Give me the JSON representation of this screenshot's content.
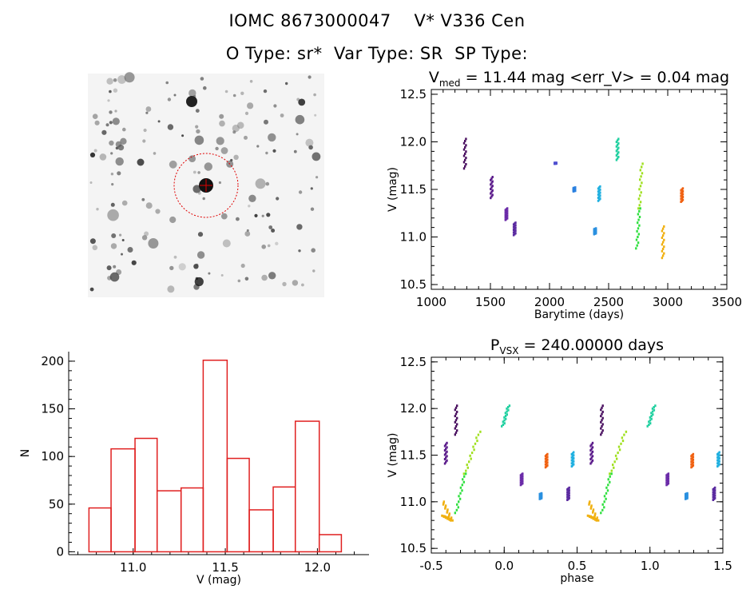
{
  "header": {
    "line1": "IOMC 8673000047    V* V336 Cen",
    "line2": "O Type: sr*  Var Type: SR  SP Type:"
  },
  "colors": {
    "hist": "#e02020",
    "circle": "#e00000",
    "axis": "#000000",
    "blue_text": "#2030c0"
  },
  "image_panel": {
    "type": "star-field-image",
    "circle_color": "#e00000"
  },
  "chart_data": [
    {
      "id": "lightcurve",
      "type": "scatter",
      "title_main": "V",
      "title_sub": "med",
      "title_rest": " = 11.44 mag <err_V> = 0.04 mag",
      "xlabel": "Barytime (days)",
      "ylabel": "V (mag)",
      "xlim": [
        1000,
        3500
      ],
      "ylim": [
        12.55,
        10.45
      ],
      "xticks": [
        "1000",
        "1500",
        "2000",
        "2500",
        "3000",
        "3500"
      ],
      "yticks": [
        "10.5",
        "11.0",
        "11.5",
        "12.0",
        "12.5"
      ],
      "series": [
        {
          "color": "#4a1060",
          "points": [
            [
              1285,
              11.72
            ],
            [
              1285,
              12.03
            ]
          ]
        },
        {
          "color": "#5a1a8a",
          "points": [
            [
              1510,
              11.41
            ],
            [
              1510,
              11.63
            ]
          ]
        },
        {
          "color": "#6a2aa8",
          "points": [
            [
              1635,
              11.18
            ],
            [
              1635,
              11.3
            ]
          ]
        },
        {
          "color": "#5a2aa0",
          "points": [
            [
              1705,
              11.02
            ],
            [
              1705,
              11.15
            ]
          ]
        },
        {
          "color": "#5050d0",
          "points": [
            [
              2050,
              11.77
            ],
            [
              2050,
              11.78
            ]
          ]
        },
        {
          "color": "#2a80e0",
          "points": [
            [
              2210,
              11.48
            ],
            [
              2210,
              11.52
            ]
          ]
        },
        {
          "color": "#2a90e0",
          "points": [
            [
              2385,
              11.03
            ],
            [
              2385,
              11.09
            ]
          ]
        },
        {
          "color": "#20b0e0",
          "points": [
            [
              2420,
              11.38
            ],
            [
              2420,
              11.53
            ]
          ]
        },
        {
          "color": "#20d0a0",
          "points": [
            [
              2575,
              11.81
            ],
            [
              2575,
              12.03
            ]
          ]
        },
        {
          "color": "#30e040",
          "points": [
            [
              2740,
              10.88
            ],
            [
              2760,
              11.3
            ]
          ]
        },
        {
          "color": "#a0e020",
          "points": [
            [
              2760,
              11.3
            ],
            [
              2780,
              11.77
            ]
          ]
        },
        {
          "color": "#f0b010",
          "points": [
            [
              2960,
              10.78
            ],
            [
              2960,
              11.11
            ]
          ]
        },
        {
          "color": "#f06010",
          "points": [
            [
              3120,
              11.37
            ],
            [
              3120,
              11.51
            ]
          ]
        }
      ]
    },
    {
      "id": "histogram",
      "type": "bar",
      "xlabel": "V (mag)",
      "ylabel": "N",
      "xlim": [
        10.65,
        12.28
      ],
      "ylim": [
        -3,
        210
      ],
      "xticks": [
        "11.0",
        "11.5",
        "12.0"
      ],
      "yticks": [
        "0",
        "50",
        "100",
        "150",
        "200"
      ],
      "bin_edges": [
        10.76,
        10.88,
        11.01,
        11.13,
        11.26,
        11.38,
        11.51,
        11.63,
        11.76,
        11.88,
        12.01,
        12.13
      ],
      "values": [
        46,
        108,
        119,
        64,
        67,
        201,
        98,
        44,
        68,
        137,
        18
      ]
    },
    {
      "id": "phased",
      "type": "scatter",
      "title_main": "P",
      "title_sub": "VSX",
      "title_rest": " = 240.00000 days",
      "xlabel": "phase",
      "ylabel": "V (mag)",
      "xlim": [
        -0.5,
        1.5
      ],
      "ylim": [
        12.55,
        10.45
      ],
      "xticks": [
        "-0.5",
        "0.0",
        "0.5",
        "1.0",
        "1.5"
      ],
      "yticks": [
        "10.5",
        "11.0",
        "11.5",
        "12.0",
        "12.5"
      ],
      "series": [
        {
          "color": "#f0b010",
          "points": [
            [
              -0.42,
              10.85
            ],
            [
              -0.36,
              10.8
            ],
            [
              -0.42,
              11.0
            ]
          ]
        },
        {
          "color": "#30e040",
          "points": [
            [
              -0.33,
              10.88
            ],
            [
              -0.27,
              11.3
            ]
          ]
        },
        {
          "color": "#a0e020",
          "points": [
            [
              -0.27,
              11.3
            ],
            [
              -0.17,
              11.75
            ]
          ]
        },
        {
          "color": "#4a1060",
          "points": [
            [
              -0.33,
              11.72
            ],
            [
              -0.33,
              12.03
            ]
          ]
        },
        {
          "color": "#5a1a8a",
          "points": [
            [
              -0.4,
              11.41
            ],
            [
              -0.4,
              11.63
            ]
          ]
        },
        {
          "color": "#20d0a0",
          "points": [
            [
              -0.01,
              11.81
            ],
            [
              0.03,
              12.03
            ]
          ]
        },
        {
          "color": "#6a2aa8",
          "points": [
            [
              0.12,
              11.18
            ],
            [
              0.12,
              11.3
            ]
          ]
        },
        {
          "color": "#2a90e0",
          "points": [
            [
              0.25,
              11.03
            ],
            [
              0.25,
              11.09
            ]
          ]
        },
        {
          "color": "#f06010",
          "points": [
            [
              0.29,
              11.37
            ],
            [
              0.29,
              11.51
            ]
          ]
        },
        {
          "color": "#5a2aa0",
          "points": [
            [
              0.44,
              11.02
            ],
            [
              0.44,
              11.15
            ]
          ]
        },
        {
          "color": "#20b0e0",
          "points": [
            [
              0.47,
              11.38
            ],
            [
              0.47,
              11.53
            ]
          ]
        },
        {
          "color": "#f0b010",
          "points": [
            [
              0.58,
              10.85
            ],
            [
              0.64,
              10.8
            ],
            [
              0.58,
              11.0
            ]
          ]
        },
        {
          "color": "#30e040",
          "points": [
            [
              0.67,
              10.88
            ],
            [
              0.73,
              11.3
            ]
          ]
        },
        {
          "color": "#a0e020",
          "points": [
            [
              0.73,
              11.3
            ],
            [
              0.83,
              11.75
            ]
          ]
        },
        {
          "color": "#4a1060",
          "points": [
            [
              0.67,
              11.72
            ],
            [
              0.67,
              12.03
            ]
          ]
        },
        {
          "color": "#5a1a8a",
          "points": [
            [
              0.6,
              11.41
            ],
            [
              0.6,
              11.63
            ]
          ]
        },
        {
          "color": "#20d0a0",
          "points": [
            [
              0.99,
              11.81
            ],
            [
              1.03,
              12.03
            ]
          ]
        },
        {
          "color": "#6a2aa8",
          "points": [
            [
              1.12,
              11.18
            ],
            [
              1.12,
              11.3
            ]
          ]
        },
        {
          "color": "#2a90e0",
          "points": [
            [
              1.25,
              11.03
            ],
            [
              1.25,
              11.09
            ]
          ]
        },
        {
          "color": "#f06010",
          "points": [
            [
              1.29,
              11.37
            ],
            [
              1.29,
              11.51
            ]
          ]
        },
        {
          "color": "#5a2aa0",
          "points": [
            [
              1.44,
              11.02
            ],
            [
              1.44,
              11.15
            ]
          ]
        },
        {
          "color": "#20b0e0",
          "points": [
            [
              1.47,
              11.38
            ],
            [
              1.47,
              11.53
            ]
          ]
        }
      ]
    }
  ]
}
